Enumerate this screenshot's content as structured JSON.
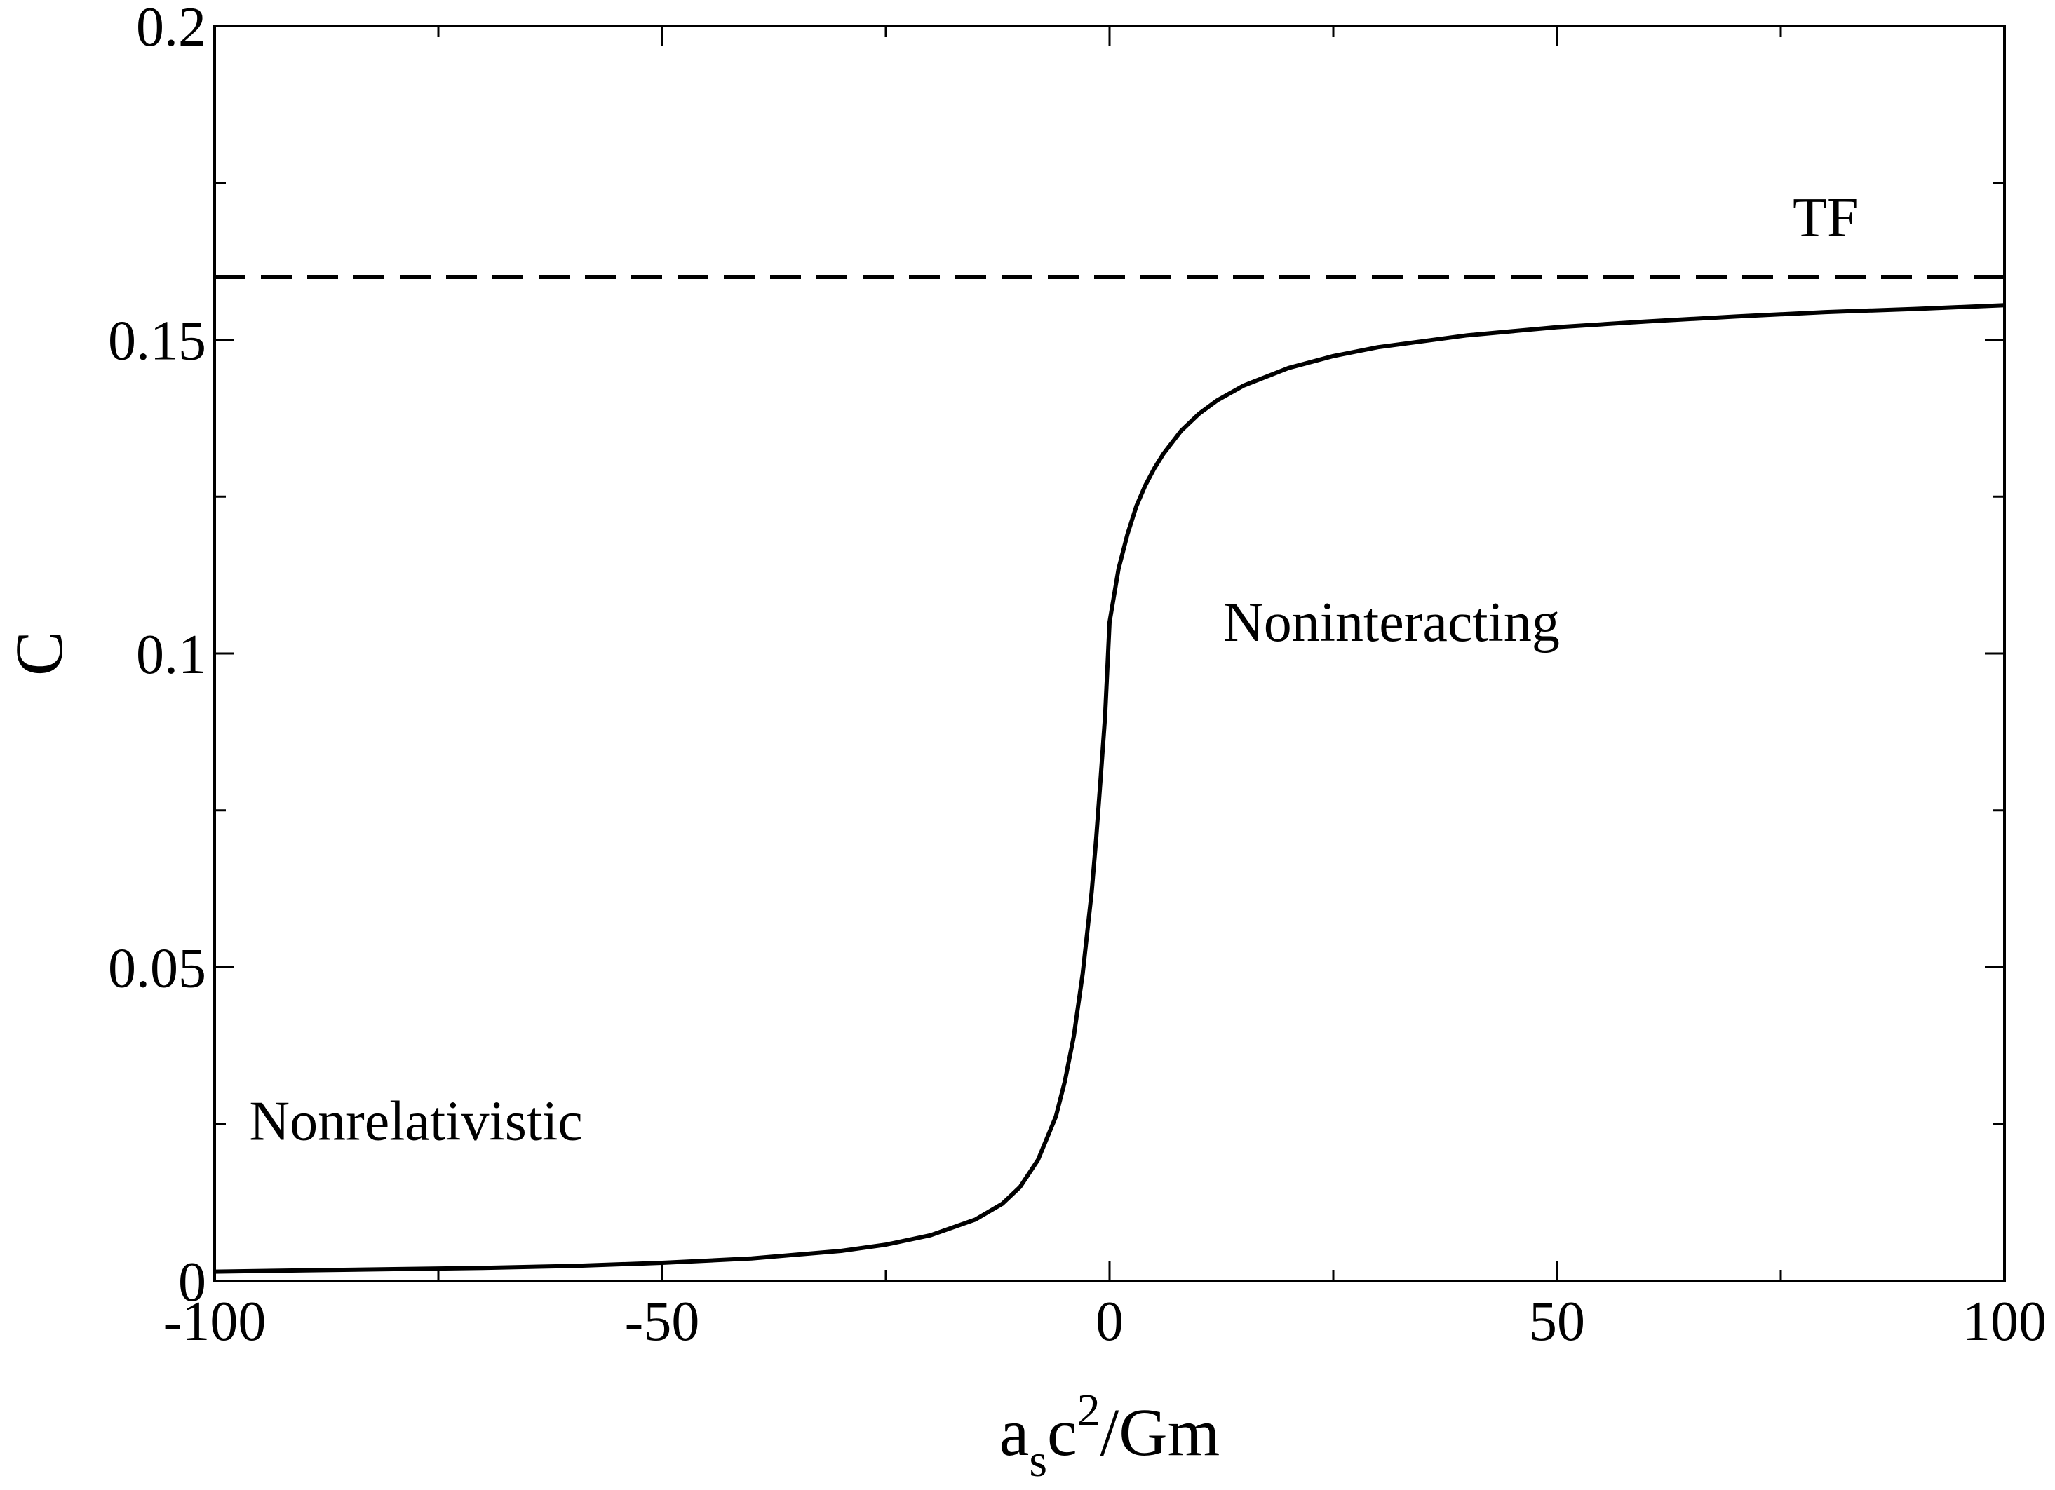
{
  "chart_data": {
    "type": "line",
    "xlabel_parts": {
      "a": "a",
      "sub": "s",
      "c": "c",
      "sup": "2",
      "rest": "/Gm"
    },
    "ylabel": "C",
    "xlim": [
      -100,
      100
    ],
    "ylim": [
      0,
      0.2
    ],
    "xticks": [
      -100,
      -50,
      0,
      50,
      100
    ],
    "xtick_labels": [
      "-100",
      "-50",
      "0",
      "50",
      "100"
    ],
    "x_minor_step": 25,
    "yticks": [
      0,
      0.05,
      0.1,
      0.15,
      0.2
    ],
    "ytick_labels": [
      "0",
      "0.05",
      "0.1",
      "0.15",
      "0.2"
    ],
    "y_minor_step": 0.025,
    "grid": false,
    "series": [
      {
        "style": "solid",
        "color": "#000000",
        "x": [
          -100,
          -90,
          -80,
          -70,
          -60,
          -50,
          -40,
          -30,
          -25,
          -20,
          -15,
          -12,
          -10,
          -8,
          -6,
          -5,
          -4,
          -3,
          -2,
          -1.5,
          -1,
          -0.5,
          0,
          1,
          2,
          3,
          4,
          5,
          6,
          8,
          10,
          12,
          15,
          20,
          25,
          30,
          40,
          50,
          60,
          70,
          80,
          90,
          100
        ],
        "y": [
          0.0015,
          0.0017,
          0.0019,
          0.0021,
          0.0024,
          0.0029,
          0.0036,
          0.0048,
          0.0058,
          0.0073,
          0.0098,
          0.0123,
          0.015,
          0.0193,
          0.0262,
          0.0318,
          0.039,
          0.049,
          0.062,
          0.0705,
          0.08,
          0.09,
          0.105,
          0.1135,
          0.119,
          0.1235,
          0.1268,
          0.1295,
          0.1318,
          0.1355,
          0.1382,
          0.1403,
          0.1427,
          0.1455,
          0.1474,
          0.1488,
          0.1507,
          0.152,
          0.1529,
          0.1537,
          0.1544,
          0.1549,
          0.1555
        ]
      },
      {
        "style": "dashed",
        "color": "#000000",
        "x": [
          -100,
          100
        ],
        "y": [
          0.16,
          0.16
        ]
      }
    ],
    "annotations": [
      {
        "id": "tf",
        "text": "TF",
        "x": 80,
        "y": 0.1665
      },
      {
        "id": "noninteracting",
        "text": "Noninteracting",
        "x": 31.5,
        "y": 0.102
      },
      {
        "id": "nonrelativistic",
        "text": "Nonrelativistic",
        "x": -77.5,
        "y": 0.0225
      }
    ]
  }
}
